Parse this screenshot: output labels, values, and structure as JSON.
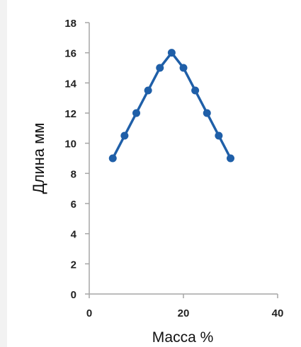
{
  "chart_data": {
    "type": "line",
    "xlabel": "Масса %",
    "ylabel": "Длина  мм",
    "xlim": [
      0,
      40
    ],
    "ylim": [
      0,
      18
    ],
    "x_ticks": [
      0,
      20,
      40
    ],
    "y_ticks": [
      0,
      2,
      4,
      6,
      8,
      10,
      12,
      14,
      16,
      18
    ],
    "grid": false,
    "legend": "none",
    "series": [
      {
        "color": "#1f5fa8",
        "marker": "circle",
        "points": [
          {
            "x": 5,
            "y": 9
          },
          {
            "x": 7.5,
            "y": 10.5
          },
          {
            "x": 10,
            "y": 12
          },
          {
            "x": 12.5,
            "y": 13.5
          },
          {
            "x": 15,
            "y": 15
          },
          {
            "x": 17.5,
            "y": 16
          },
          {
            "x": 20,
            "y": 15
          },
          {
            "x": 22.5,
            "y": 13.5
          },
          {
            "x": 25,
            "y": 12
          },
          {
            "x": 27.5,
            "y": 10.5
          },
          {
            "x": 30,
            "y": 9
          }
        ]
      }
    ]
  }
}
